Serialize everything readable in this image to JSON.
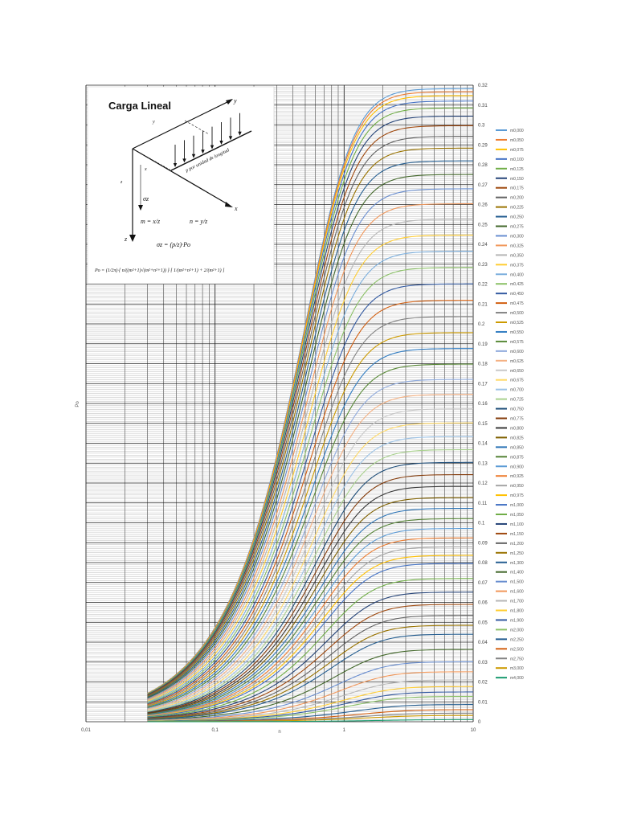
{
  "chart_data": {
    "type": "line",
    "title": "",
    "xlabel": "n",
    "ylabel": "Po",
    "x_scale": "log",
    "xlim": [
      0.01,
      10
    ],
    "ylim": [
      0,
      0.32
    ],
    "grid": true,
    "legend_position": "right",
    "x_ticks": [
      "0,01",
      "0,1",
      "1",
      "10"
    ],
    "y_ticks": [
      "0",
      "0.01",
      "0.02",
      "0.03",
      "0.04",
      "0.05",
      "0.06",
      "0.07",
      "0.08",
      "0.09",
      "0.1",
      "0.11",
      "0.12",
      "0.13",
      "0.14",
      "0.15",
      "0.16",
      "0.17",
      "0.18",
      "0.19",
      "0.2",
      "0.21",
      "0.22",
      "0.23",
      "0.24",
      "0.25",
      "0.26",
      "0.27",
      "0.28",
      "0.29",
      "0.3",
      "0.31",
      "0.32"
    ],
    "curve_x_range": [
      0.03,
      10
    ],
    "series": [
      {
        "name": "m0,000",
        "m": 0.0,
        "color": "#5b9bd5"
      },
      {
        "name": "m0,050",
        "m": 0.05,
        "color": "#ed7d31"
      },
      {
        "name": "m0,075",
        "m": 0.075,
        "color": "#ffc000"
      },
      {
        "name": "m0,100",
        "m": 0.1,
        "color": "#4472c4"
      },
      {
        "name": "m0,125",
        "m": 0.125,
        "color": "#70ad47"
      },
      {
        "name": "m0,150",
        "m": 0.15,
        "color": "#264478"
      },
      {
        "name": "m0,175",
        "m": 0.175,
        "color": "#9e480e"
      },
      {
        "name": "m0,200",
        "m": 0.2,
        "color": "#636363"
      },
      {
        "name": "m0,225",
        "m": 0.225,
        "color": "#997300"
      },
      {
        "name": "m0,250",
        "m": 0.25,
        "color": "#255e91"
      },
      {
        "name": "m0,275",
        "m": 0.275,
        "color": "#43682b"
      },
      {
        "name": "m0,300",
        "m": 0.3,
        "color": "#698ed0"
      },
      {
        "name": "m0,325",
        "m": 0.325,
        "color": "#f1975a"
      },
      {
        "name": "m0,350",
        "m": 0.35,
        "color": "#b7b7b7"
      },
      {
        "name": "m0,375",
        "m": 0.375,
        "color": "#ffcd33"
      },
      {
        "name": "m0,400",
        "m": 0.4,
        "color": "#7cafdd"
      },
      {
        "name": "m0,425",
        "m": 0.425,
        "color": "#8cc168"
      },
      {
        "name": "m0,450",
        "m": 0.45,
        "color": "#335aa1"
      },
      {
        "name": "m0,475",
        "m": 0.475,
        "color": "#d26012"
      },
      {
        "name": "m0,500",
        "m": 0.5,
        "color": "#848484"
      },
      {
        "name": "m0,525",
        "m": 0.525,
        "color": "#cc9a00"
      },
      {
        "name": "m0,550",
        "m": 0.55,
        "color": "#327dc2"
      },
      {
        "name": "m0,575",
        "m": 0.575,
        "color": "#5a8a39"
      },
      {
        "name": "m0,600",
        "m": 0.6,
        "color": "#8faadc"
      },
      {
        "name": "m0,625",
        "m": 0.625,
        "color": "#f4b183"
      },
      {
        "name": "m0,650",
        "m": 0.65,
        "color": "#c9c9c9"
      },
      {
        "name": "m0,675",
        "m": 0.675,
        "color": "#ffd966"
      },
      {
        "name": "m0,700",
        "m": 0.7,
        "color": "#9dc3e6"
      },
      {
        "name": "m0,725",
        "m": 0.725,
        "color": "#a9d18e"
      },
      {
        "name": "m0,750",
        "m": 0.75,
        "color": "#1f4e79"
      },
      {
        "name": "m0,775",
        "m": 0.775,
        "color": "#843c0c"
      },
      {
        "name": "m0,800",
        "m": 0.8,
        "color": "#3a3a3a"
      },
      {
        "name": "m0,825",
        "m": 0.825,
        "color": "#7f6000"
      },
      {
        "name": "m0,850",
        "m": 0.85,
        "color": "#2e75b6"
      },
      {
        "name": "m0,875",
        "m": 0.875,
        "color": "#548235"
      },
      {
        "name": "m0,900",
        "m": 0.9,
        "color": "#5b9bd5"
      },
      {
        "name": "m0,925",
        "m": 0.925,
        "color": "#ed7d31"
      },
      {
        "name": "m0,950",
        "m": 0.95,
        "color": "#a5a5a5"
      },
      {
        "name": "m0,975",
        "m": 0.975,
        "color": "#ffc000"
      },
      {
        "name": "m1,000",
        "m": 1.0,
        "color": "#4472c4"
      },
      {
        "name": "m1,050",
        "m": 1.05,
        "color": "#70ad47"
      },
      {
        "name": "m1,100",
        "m": 1.1,
        "color": "#264478"
      },
      {
        "name": "m1,150",
        "m": 1.15,
        "color": "#9e480e"
      },
      {
        "name": "m1,200",
        "m": 1.2,
        "color": "#636363"
      },
      {
        "name": "m1,250",
        "m": 1.25,
        "color": "#997300"
      },
      {
        "name": "m1,300",
        "m": 1.3,
        "color": "#255e91"
      },
      {
        "name": "m1,400",
        "m": 1.4,
        "color": "#43682b"
      },
      {
        "name": "m1,500",
        "m": 1.5,
        "color": "#698ed0"
      },
      {
        "name": "m1,600",
        "m": 1.6,
        "color": "#f1975a"
      },
      {
        "name": "m1,700",
        "m": 1.7,
        "color": "#b7b7b7"
      },
      {
        "name": "m1,800",
        "m": 1.8,
        "color": "#ffcd33"
      },
      {
        "name": "m1,900",
        "m": 1.9,
        "color": "#335aa1"
      },
      {
        "name": "m2,000",
        "m": 2.0,
        "color": "#8cc168"
      },
      {
        "name": "m2,250",
        "m": 2.25,
        "color": "#255e91"
      },
      {
        "name": "m2,500",
        "m": 2.5,
        "color": "#d26012"
      },
      {
        "name": "m2,750",
        "m": 2.75,
        "color": "#848484"
      },
      {
        "name": "m3,000",
        "m": 3.0,
        "color": "#cc9a00"
      },
      {
        "name": "m4,000",
        "m": 4.0,
        "color": "#1a9a6e"
      }
    ]
  },
  "inset": {
    "title": "Carga Lineal",
    "axis_x": "x",
    "axis_y": "y",
    "axis_z": "z",
    "z_dim": "z",
    "x_dim": "x",
    "y_dim": "y",
    "load_label": "p por unidad de longitud",
    "stress_label": "σz",
    "eq_m": "m = x/z",
    "eq_n": "n = y/z",
    "eq_sigma": "σz = (p/z)·Po",
    "eq_po": "Po = (1/2π)·[ n/((m²+1)√(m²+n²+1)) ]·[ 1/(m²+n²+1) + 2/(m²+1) ]"
  }
}
